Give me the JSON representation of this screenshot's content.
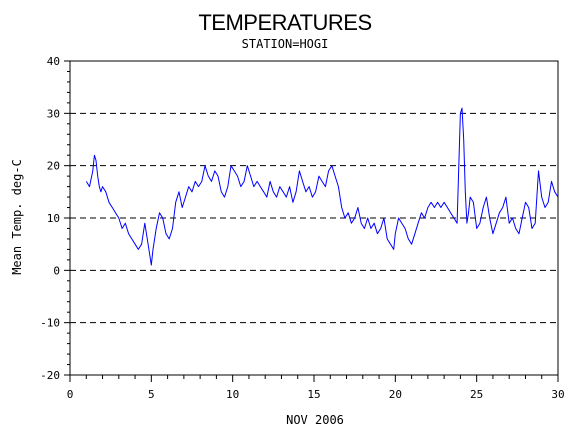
{
  "chart_data": {
    "type": "line",
    "title": "TEMPERATURES",
    "subtitle": "STATION=HOGI",
    "xlabel": "NOV 2006",
    "ylabel": "Mean Temp. deg-C",
    "xlim": [
      0,
      30
    ],
    "ylim": [
      -20,
      40
    ],
    "x_ticks": [
      0,
      5,
      10,
      15,
      20,
      25,
      30
    ],
    "y_ticks": [
      -20,
      -10,
      0,
      10,
      20,
      30,
      40
    ],
    "x_tick_labels": [
      "0",
      "5",
      "10",
      "15",
      "20",
      "25",
      "30"
    ],
    "y_tick_labels": [
      "-20",
      "-10",
      "0",
      "10",
      "20",
      "30",
      "40"
    ],
    "grid": "horizontal dashed at y ticks",
    "line_color": "#0000ff",
    "series": [
      {
        "x": [
          1.0,
          1.2,
          1.4,
          1.5,
          1.6,
          1.7,
          1.8,
          1.9,
          2.0,
          2.2,
          2.4,
          2.6,
          2.8,
          3.0,
          3.2,
          3.4,
          3.6,
          3.8,
          4.0,
          4.2,
          4.4,
          4.6,
          4.8,
          4.9,
          5.0,
          5.1,
          5.3,
          5.5,
          5.7,
          5.9,
          6.1,
          6.3,
          6.5,
          6.7,
          6.9,
          7.1,
          7.3,
          7.5,
          7.7,
          7.9,
          8.1,
          8.3,
          8.5,
          8.7,
          8.9,
          9.1,
          9.3,
          9.5,
          9.7,
          9.9,
          10.1,
          10.3,
          10.5,
          10.7,
          10.9,
          11.1,
          11.3,
          11.5,
          11.7,
          11.9,
          12.1,
          12.3,
          12.5,
          12.7,
          12.9,
          13.1,
          13.3,
          13.5,
          13.7,
          13.9,
          14.1,
          14.3,
          14.5,
          14.7,
          14.9,
          15.1,
          15.3,
          15.5,
          15.7,
          15.9,
          16.1,
          16.3,
          16.5,
          16.7,
          16.9,
          17.1,
          17.3,
          17.5,
          17.7,
          17.9,
          18.1,
          18.3,
          18.5,
          18.7,
          18.9,
          19.1,
          19.3,
          19.5,
          19.7,
          19.9,
          20.0,
          20.2,
          20.4,
          20.6,
          20.8,
          21.0,
          21.2,
          21.4,
          21.6,
          21.8,
          22.0,
          22.2,
          22.4,
          22.6,
          22.8,
          23.0,
          23.2,
          23.4,
          23.6,
          23.8,
          23.9,
          24.0,
          24.1,
          24.2,
          24.3,
          24.4,
          24.5,
          24.6,
          24.8,
          25.0,
          25.2,
          25.4,
          25.6,
          25.8,
          26.0,
          26.2,
          26.4,
          26.6,
          26.8,
          27.0,
          27.2,
          27.4,
          27.6,
          27.8,
          28.0,
          28.2,
          28.4,
          28.6,
          28.8,
          29.0,
          29.2,
          29.4,
          29.6,
          29.8,
          30.0
        ],
        "y": [
          17,
          16,
          19,
          22,
          21,
          18,
          16,
          15,
          16,
          15,
          13,
          12,
          11,
          10,
          8,
          9,
          7,
          6,
          5,
          4,
          5,
          9,
          5,
          3,
          1,
          4,
          8,
          11,
          10,
          7,
          6,
          8,
          13,
          15,
          12,
          14,
          16,
          15,
          17,
          16,
          17,
          20,
          18,
          17,
          19,
          18,
          15,
          14,
          16,
          20,
          19,
          18,
          16,
          17,
          20,
          18,
          16,
          17,
          16,
          15,
          14,
          17,
          15,
          14,
          16,
          15,
          14,
          16,
          13,
          15,
          19,
          17,
          15,
          16,
          14,
          15,
          18,
          17,
          16,
          19,
          20,
          18,
          16,
          12,
          10,
          11,
          9,
          10,
          12,
          9,
          8,
          10,
          8,
          9,
          7,
          8,
          10,
          6,
          5,
          4,
          7,
          10,
          9,
          8,
          6,
          5,
          7,
          9,
          11,
          10,
          12,
          13,
          12,
          13,
          12,
          13,
          12,
          11,
          10,
          9,
          20,
          30,
          31,
          25,
          15,
          9,
          11,
          14,
          13,
          8,
          9,
          12,
          14,
          10,
          7,
          9,
          11,
          12,
          14,
          9,
          10,
          8,
          7,
          10,
          13,
          12,
          8,
          9,
          19,
          14,
          12,
          13,
          17,
          15,
          14
        ]
      }
    ]
  }
}
